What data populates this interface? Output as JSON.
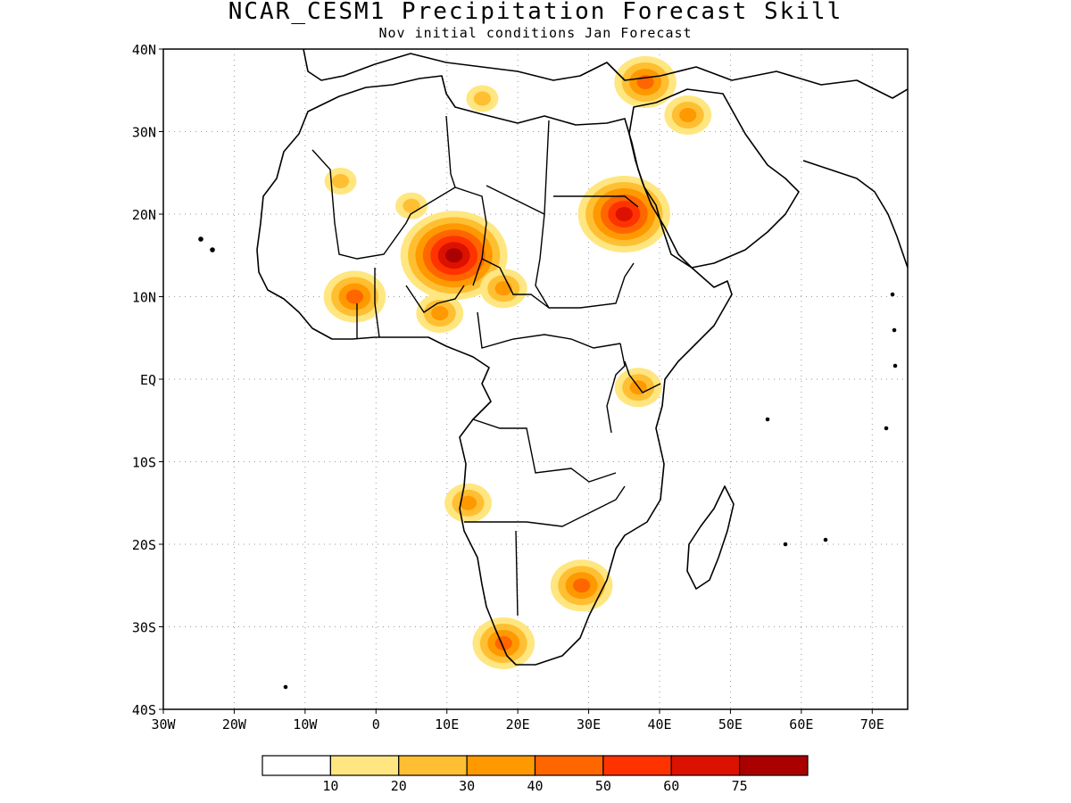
{
  "title": "NCAR_CESM1 Precipitation Forecast Skill",
  "subtitle": "Nov initial conditions  Jan Forecast",
  "map": {
    "lon_range": [
      -30,
      75
    ],
    "lat_range": [
      -40,
      40
    ],
    "lon_ticks": [
      "30W",
      "20W",
      "10W",
      "0",
      "10E",
      "20E",
      "30E",
      "40E",
      "50E",
      "60E",
      "70E"
    ],
    "lat_ticks": [
      "40N",
      "30N",
      "20N",
      "10N",
      "EQ",
      "10S",
      "20S",
      "30S",
      "40S"
    ],
    "grid": "dotted"
  },
  "colorbar": {
    "labels": [
      "10",
      "20",
      "30",
      "40",
      "50",
      "60",
      "75"
    ],
    "colors": [
      "#ffffff",
      "#ffe680",
      "#ffbf33",
      "#ff9900",
      "#ff6600",
      "#ff3300",
      "#dd1100",
      "#aa0000"
    ]
  },
  "skill_regions": [
    {
      "lon": 15,
      "lat": 34,
      "level": 2
    },
    {
      "lon": 38,
      "lat": 36,
      "level": 4
    },
    {
      "lon": 44,
      "lat": 32,
      "level": 3
    },
    {
      "lon": -5,
      "lat": 24,
      "level": 2
    },
    {
      "lon": 5,
      "lat": 21,
      "level": 2
    },
    {
      "lon": 11,
      "lat": 15,
      "level": 7
    },
    {
      "lon": 35,
      "lat": 20,
      "level": 6
    },
    {
      "lon": 18,
      "lat": 11,
      "level": 3
    },
    {
      "lon": -3,
      "lat": 10,
      "level": 4
    },
    {
      "lon": 9,
      "lat": 8,
      "level": 3
    },
    {
      "lon": 37,
      "lat": -1,
      "level": 3
    },
    {
      "lon": 13,
      "lat": -15,
      "level": 3
    },
    {
      "lon": 29,
      "lat": -25,
      "level": 4
    },
    {
      "lon": 18,
      "lat": -32,
      "level": 4
    }
  ]
}
